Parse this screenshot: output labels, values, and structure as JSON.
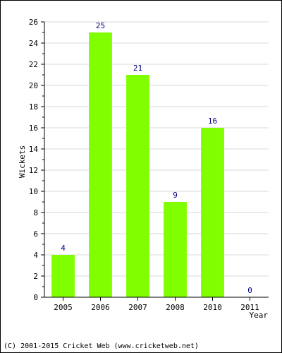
{
  "chart_data": {
    "type": "bar",
    "categories": [
      "2005",
      "2006",
      "2007",
      "2008",
      "2010",
      "2011"
    ],
    "values": [
      4,
      25,
      21,
      9,
      16,
      0
    ],
    "data_labels": [
      "4",
      "25",
      "21",
      "9",
      "16",
      "0"
    ],
    "title": "",
    "xlabel": "Year",
    "ylabel": "Wickets",
    "ylim": [
      0,
      26
    ],
    "yticks": [
      0,
      2,
      4,
      6,
      8,
      10,
      12,
      14,
      16,
      18,
      20,
      22,
      24,
      26
    ],
    "grid": true,
    "bar_color": "#80ff00",
    "label_color": "#000080",
    "grid_color": "#d8d8d8"
  },
  "footer": {
    "copyright": "(C) 2001-2015 Cricket Web (www.cricketweb.net)"
  }
}
